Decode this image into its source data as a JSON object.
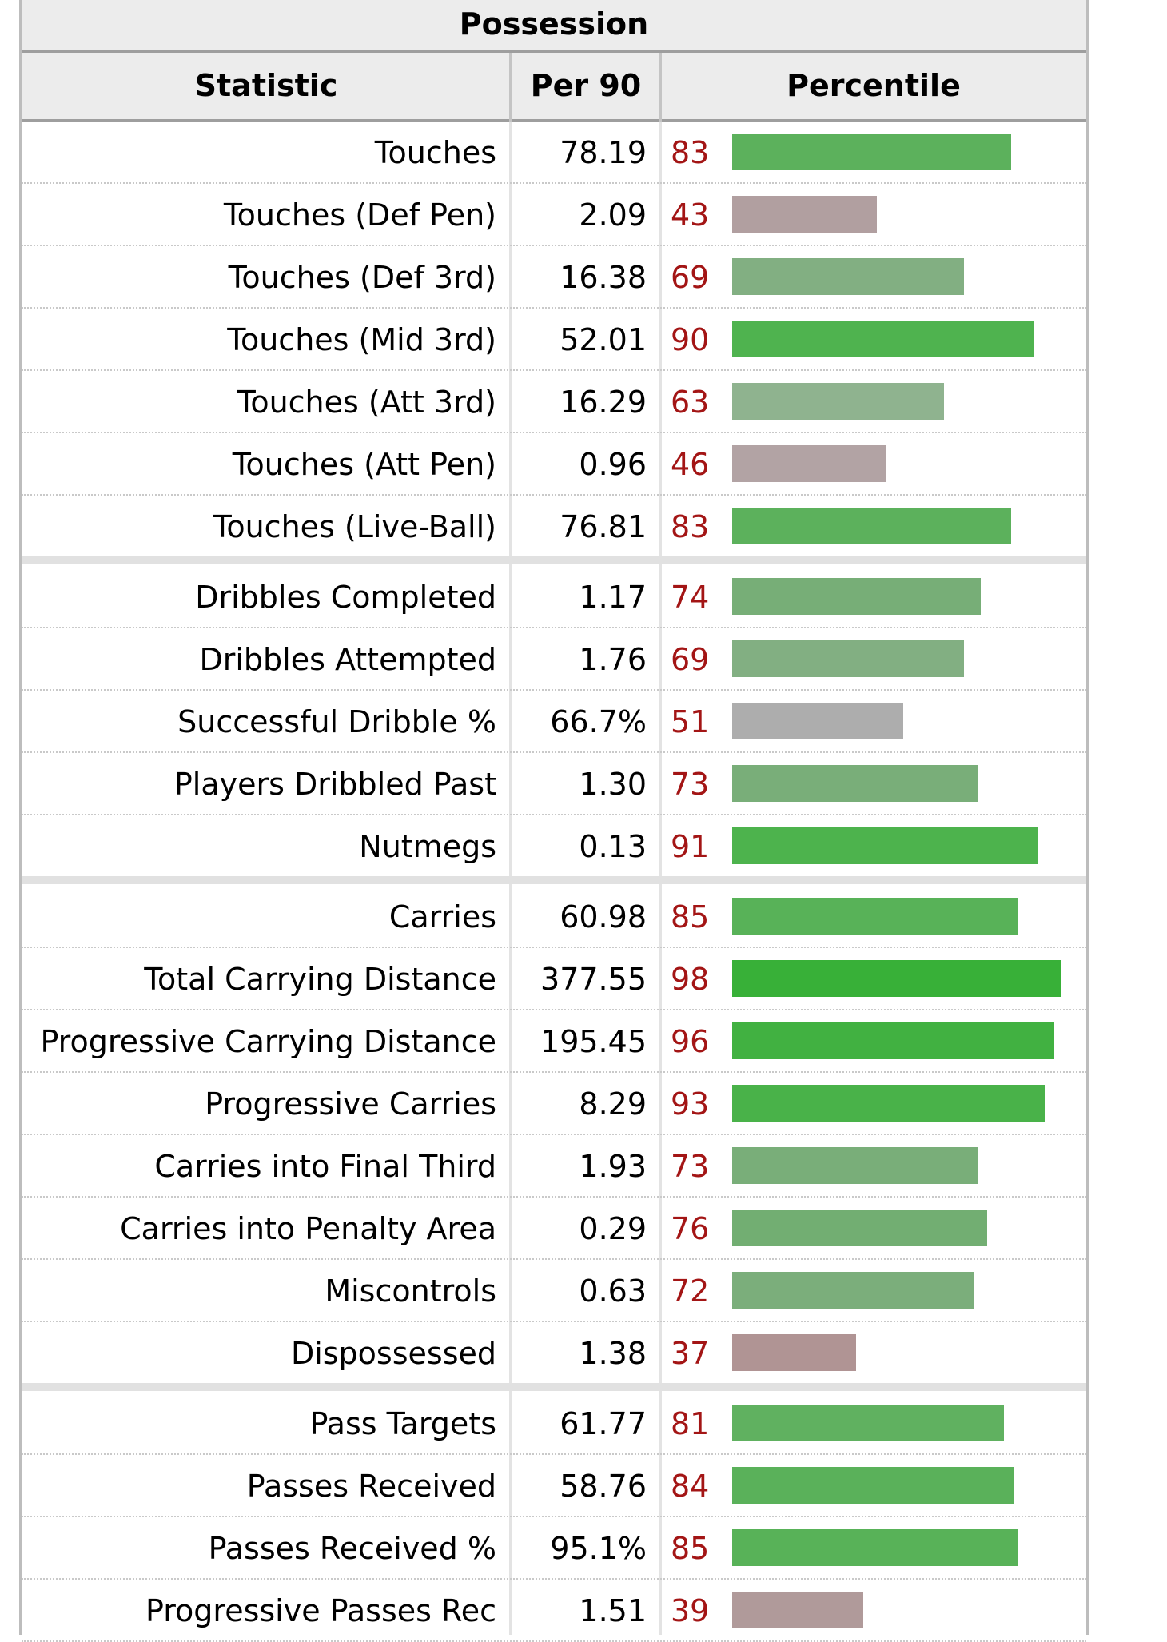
{
  "caption": "Possession",
  "headers": {
    "stat": "Statistic",
    "per90": "Per 90",
    "pct": "Percentile"
  },
  "chart_data": {
    "type": "bar",
    "title": "Possession",
    "xlim": [
      0,
      100
    ],
    "groups": [
      [
        {
          "stat": "Touches",
          "per90": "78.19",
          "pct": 83,
          "color": "#5cb15c"
        },
        {
          "stat": "Touches (Def Pen)",
          "per90": "2.09",
          "pct": 43,
          "color": "#b19fa0"
        },
        {
          "stat": "Touches (Def 3rd)",
          "per90": "16.38",
          "pct": 69,
          "color": "#82af82"
        },
        {
          "stat": "Touches (Mid 3rd)",
          "per90": "52.01",
          "pct": 90,
          "color": "#4fb34f"
        },
        {
          "stat": "Touches (Att 3rd)",
          "per90": "16.29",
          "pct": 63,
          "color": "#8fb38f"
        },
        {
          "stat": "Touches (Att Pen)",
          "per90": "0.96",
          "pct": 46,
          "color": "#b2a3a4"
        },
        {
          "stat": "Touches (Live-Ball)",
          "per90": "76.81",
          "pct": 83,
          "color": "#5cb15c"
        }
      ],
      [
        {
          "stat": "Dribbles Completed",
          "per90": "1.17",
          "pct": 74,
          "color": "#77ae77"
        },
        {
          "stat": "Dribbles Attempted",
          "per90": "1.76",
          "pct": 69,
          "color": "#82af82"
        },
        {
          "stat": "Successful Dribble %",
          "per90": "66.7%",
          "pct": 51,
          "color": "#adadad"
        },
        {
          "stat": "Players Dribbled Past",
          "per90": "1.30",
          "pct": 73,
          "color": "#79ae79"
        },
        {
          "stat": "Nutmegs",
          "per90": "0.13",
          "pct": 91,
          "color": "#4db34d"
        }
      ],
      [
        {
          "stat": "Carries",
          "per90": "60.98",
          "pct": 85,
          "color": "#58b258"
        },
        {
          "stat": "Total Carrying Distance",
          "per90": "377.55",
          "pct": 98,
          "color": "#38b038"
        },
        {
          "stat": "Progressive Carrying Distance",
          "per90": "195.45",
          "pct": 96,
          "color": "#41b141"
        },
        {
          "stat": "Progressive Carries",
          "per90": "8.29",
          "pct": 93,
          "color": "#49b249"
        },
        {
          "stat": "Carries into Final Third",
          "per90": "1.93",
          "pct": 73,
          "color": "#79ae79"
        },
        {
          "stat": "Carries into Penalty Area",
          "per90": "0.29",
          "pct": 76,
          "color": "#72ae72"
        },
        {
          "stat": "Miscontrols",
          "per90": "0.63",
          "pct": 72,
          "color": "#7bae7b"
        },
        {
          "stat": "Dispossessed",
          "per90": "1.38",
          "pct": 37,
          "color": "#b09494"
        }
      ],
      [
        {
          "stat": "Pass Targets",
          "per90": "61.77",
          "pct": 81,
          "color": "#60b160"
        },
        {
          "stat": "Passes Received",
          "per90": "58.76",
          "pct": 84,
          "color": "#5ab15a"
        },
        {
          "stat": "Passes Received %",
          "per90": "95.1%",
          "pct": 85,
          "color": "#58b258"
        },
        {
          "stat": "Progressive Passes Rec",
          "per90": "1.51",
          "pct": 39,
          "color": "#b09a9a"
        }
      ]
    ]
  }
}
